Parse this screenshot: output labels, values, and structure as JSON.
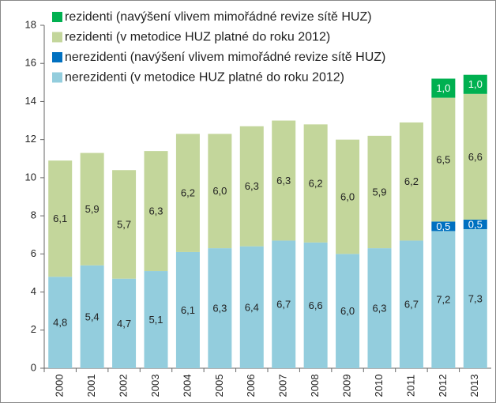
{
  "chart_data": {
    "type": "stacked-bar",
    "categories": [
      "2000",
      "2001",
      "2002",
      "2003",
      "2004",
      "2005",
      "2006",
      "2007",
      "2008",
      "2009",
      "2010",
      "2011",
      "2012",
      "2013"
    ],
    "series": [
      {
        "name": "nerezidenti (v metodice HUZ platné do roku 2012)",
        "color": "#93cddd",
        "values": [
          4.8,
          5.4,
          4.7,
          5.1,
          6.1,
          6.3,
          6.4,
          6.7,
          6.6,
          6.0,
          6.3,
          6.7,
          7.2,
          7.3
        ],
        "value_labels": [
          "4,8",
          "5,4",
          "4,7",
          "5,1",
          "6,1",
          "6,3",
          "6,4",
          "6,7",
          "6,6",
          "6,0",
          "6,3",
          "6,7",
          "7,2",
          "7,3"
        ]
      },
      {
        "name": "nerezidenti (navýšení vlivem mimořádné revize sítě HUZ)",
        "color": "#0070c0",
        "values": [
          null,
          null,
          null,
          null,
          null,
          null,
          null,
          null,
          null,
          null,
          null,
          null,
          0.5,
          0.5
        ],
        "value_labels": [
          null,
          null,
          null,
          null,
          null,
          null,
          null,
          null,
          null,
          null,
          null,
          null,
          "0,5",
          "0,5"
        ]
      },
      {
        "name": "rezidenti (v metodice HUZ platné do roku 2012)",
        "color": "#c3d69b",
        "values": [
          6.1,
          5.9,
          5.7,
          6.3,
          6.2,
          6.0,
          6.3,
          6.3,
          6.2,
          6.0,
          5.9,
          6.2,
          6.5,
          6.6
        ],
        "value_labels": [
          "6,1",
          "5,9",
          "5,7",
          "6,3",
          "6,2",
          "6,0",
          "6,3",
          "6,3",
          "6,2",
          "6,0",
          "5,9",
          "6,2",
          "6,5",
          "6,6"
        ]
      },
      {
        "name": "rezidenti (navýšení vlivem mimořádné revize sítě HUZ)",
        "color": "#00b050",
        "values": [
          null,
          null,
          null,
          null,
          null,
          null,
          null,
          null,
          null,
          null,
          null,
          null,
          1.0,
          1.0
        ],
        "value_labels": [
          null,
          null,
          null,
          null,
          null,
          null,
          null,
          null,
          null,
          null,
          null,
          null,
          "1,0",
          "1,0"
        ]
      }
    ],
    "ylim": [
      0,
      18
    ],
    "yticks": [
      0,
      2,
      4,
      6,
      8,
      10,
      12,
      14,
      16,
      18
    ],
    "grid": false,
    "legend": "top-left"
  }
}
